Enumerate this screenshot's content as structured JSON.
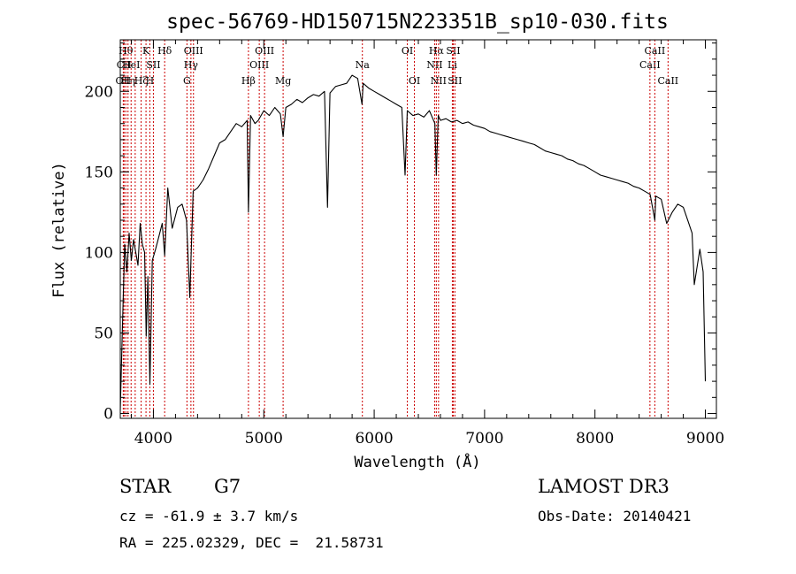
{
  "chart_data": {
    "type": "line",
    "title": "spec-56769-HD150715N223351B_sp10-030.fits",
    "xlabel": "Wavelength (Å)",
    "ylabel": "Flux (relative)",
    "xlim": [
      3700,
      9100
    ],
    "ylim": [
      -3,
      232
    ],
    "x_ticks": [
      4000,
      5000,
      6000,
      7000,
      8000,
      9000
    ],
    "y_ticks": [
      0,
      50,
      100,
      150,
      200
    ],
    "series": [
      {
        "x": [
          3700,
          3720,
          3740,
          3760,
          3780,
          3800,
          3820,
          3840,
          3860,
          3880,
          3900,
          3920,
          3935,
          3950,
          3968,
          3990,
          4020,
          4050,
          4080,
          4102,
          4130,
          4170,
          4220,
          4260,
          4300,
          4330,
          4340,
          4360,
          4400,
          4450,
          4500,
          4550,
          4600,
          4650,
          4700,
          4750,
          4800,
          4850,
          4861,
          4880,
          4920,
          4950,
          5000,
          5050,
          5100,
          5150,
          5175,
          5200,
          5250,
          5300,
          5350,
          5400,
          5450,
          5500,
          5550,
          5577,
          5600,
          5650,
          5700,
          5750,
          5800,
          5850,
          5890,
          5900,
          5950,
          6000,
          6050,
          6100,
          6150,
          6200,
          6250,
          6280,
          6300,
          6350,
          6400,
          6450,
          6500,
          6550,
          6563,
          6580,
          6600,
          6650,
          6700,
          6750,
          6800,
          6850,
          6900,
          6950,
          7000,
          7050,
          7100,
          7150,
          7200,
          7250,
          7300,
          7350,
          7400,
          7450,
          7500,
          7550,
          7600,
          7650,
          7700,
          7750,
          7800,
          7850,
          7900,
          7950,
          8000,
          8050,
          8100,
          8150,
          8200,
          8250,
          8300,
          8350,
          8400,
          8450,
          8500,
          8542,
          8550,
          8600,
          8650,
          8700,
          8750,
          8800,
          8850,
          8880,
          8900,
          8950,
          8980,
          9000
        ],
        "y": [
          2,
          55,
          105,
          88,
          112,
          95,
          108,
          100,
          92,
          118,
          105,
          100,
          48,
          85,
          18,
          95,
          102,
          110,
          118,
          98,
          140,
          115,
          128,
          130,
          120,
          72,
          95,
          138,
          140,
          145,
          152,
          160,
          168,
          170,
          175,
          180,
          178,
          182,
          125,
          185,
          180,
          182,
          188,
          185,
          190,
          186,
          172,
          190,
          192,
          195,
          193,
          196,
          198,
          197,
          200,
          128,
          199,
          203,
          204,
          205,
          210,
          208,
          192,
          205,
          202,
          200,
          198,
          196,
          194,
          192,
          190,
          148,
          188,
          185,
          186,
          184,
          188,
          180,
          148,
          185,
          182,
          183,
          181,
          182,
          180,
          181,
          179,
          178,
          177,
          175,
          174,
          173,
          172,
          171,
          170,
          169,
          168,
          167,
          165,
          163,
          162,
          161,
          160,
          158,
          157,
          155,
          154,
          152,
          150,
          148,
          147,
          146,
          145,
          144,
          143,
          141,
          140,
          138,
          136,
          120,
          135,
          133,
          118,
          125,
          130,
          128,
          118,
          112,
          80,
          102,
          88,
          20
        ]
      }
    ],
    "line_groups": [
      {
        "color": "#cc0000",
        "lines": [
          {
            "x": 3727,
            "row": 2,
            "label": "OII"
          },
          {
            "x": 3734,
            "row": 1,
            "label": "CII"
          },
          {
            "x": 3750,
            "row": 0,
            "label": "Hθ"
          },
          {
            "x": 3770,
            "row": 2,
            "label": "Hη"
          },
          {
            "x": 3798,
            "row": 1,
            "label": "HeI"
          },
          {
            "x": 3835,
            "row": 2,
            "label": ""
          },
          {
            "x": 3889,
            "row": 2,
            "label": "Hζ"
          },
          {
            "x": 3933,
            "row": 0,
            "label": "K"
          },
          {
            "x": 3968,
            "row": 2,
            "label": "H"
          },
          {
            "x": 4000,
            "row": 1,
            "label": "SII"
          },
          {
            "x": 4102,
            "row": 0,
            "label": "Hδ"
          },
          {
            "x": 4304,
            "row": 2,
            "label": "G"
          },
          {
            "x": 4340,
            "row": 1,
            "label": "Hγ"
          },
          {
            "x": 4363,
            "row": 0,
            "label": "OIII"
          },
          {
            "x": 4861,
            "row": 2,
            "label": "Hβ"
          },
          {
            "x": 4959,
            "row": 1,
            "label": "OIII"
          },
          {
            "x": 5007,
            "row": 0,
            "label": "OIII"
          },
          {
            "x": 5175,
            "row": 2,
            "label": "Mg"
          },
          {
            "x": 5893,
            "row": 1,
            "label": "Na"
          },
          {
            "x": 6300,
            "row": 0,
            "label": "OI"
          },
          {
            "x": 6364,
            "row": 2,
            "label": "OI"
          },
          {
            "x": 6548,
            "row": 1,
            "label": "NII"
          },
          {
            "x": 6563,
            "row": 0,
            "label": "Hα"
          },
          {
            "x": 6583,
            "row": 2,
            "label": "NII"
          },
          {
            "x": 6708,
            "row": 1,
            "label": "Li"
          },
          {
            "x": 6716,
            "row": 0,
            "label": "SII"
          },
          {
            "x": 6731,
            "row": 2,
            "label": "SII"
          },
          {
            "x": 8498,
            "row": 1,
            "label": "CaII"
          },
          {
            "x": 8542,
            "row": 0,
            "label": "CaII"
          },
          {
            "x": 8662,
            "row": 2,
            "label": "CaII"
          }
        ]
      }
    ]
  },
  "info": {
    "object_class": "STAR",
    "subclass": "G7",
    "survey": "LAMOST DR3",
    "redshift": "cz = -61.9 ± 3.7 km/s",
    "obs_date": "Obs-Date: 20140421",
    "coordinates": "RA = 225.02329, DEC =  21.58731"
  }
}
